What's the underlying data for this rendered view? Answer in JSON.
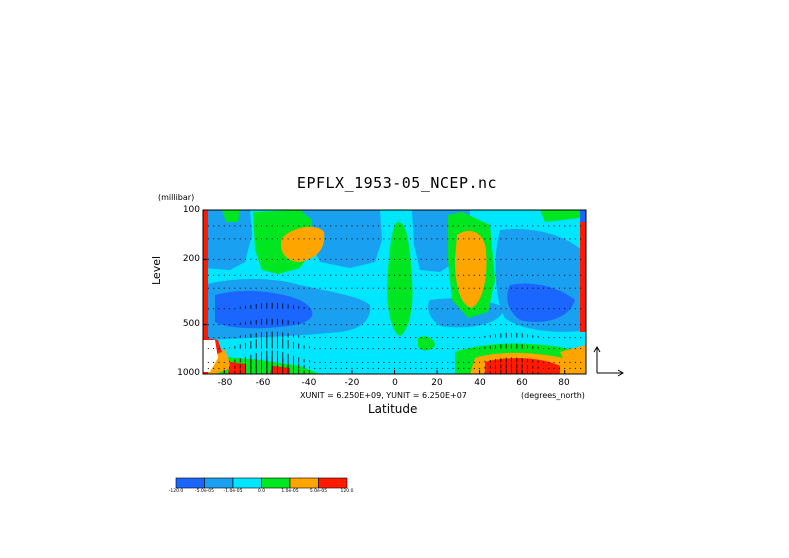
{
  "chart_data": {
    "type": "heatmap",
    "title": "EPFLX_1953-05_NCEP.nc",
    "ylabel": "Level",
    "yunit": "(millibar)",
    "xlabel": "Latitude",
    "xunit_label": "(degrees_north)",
    "vector_scale_text": "XUNIT = 6.250E+09, YUNIT = 6.250E+07",
    "y_ticks": [
      "100",
      "200",
      "500",
      "1000"
    ],
    "x_ticks": [
      "-80",
      "-60",
      "-40",
      "-20",
      "0",
      "20",
      "40",
      "60",
      "80"
    ],
    "xlim": [
      -90,
      90
    ],
    "ylim": [
      1000,
      100
    ],
    "y_scale": "log",
    "grid": false,
    "colorbar": {
      "labels": [
        "-120.0",
        "-5.0e-05",
        "-1.0e-05",
        "0.0",
        "1.0e-05",
        "5.0e-05",
        "120.0"
      ],
      "colors": [
        "#1a66ff",
        "#1aa0f0",
        "#00e6ff",
        "#00e620",
        "#ffa500",
        "#ff1a00"
      ]
    }
  }
}
